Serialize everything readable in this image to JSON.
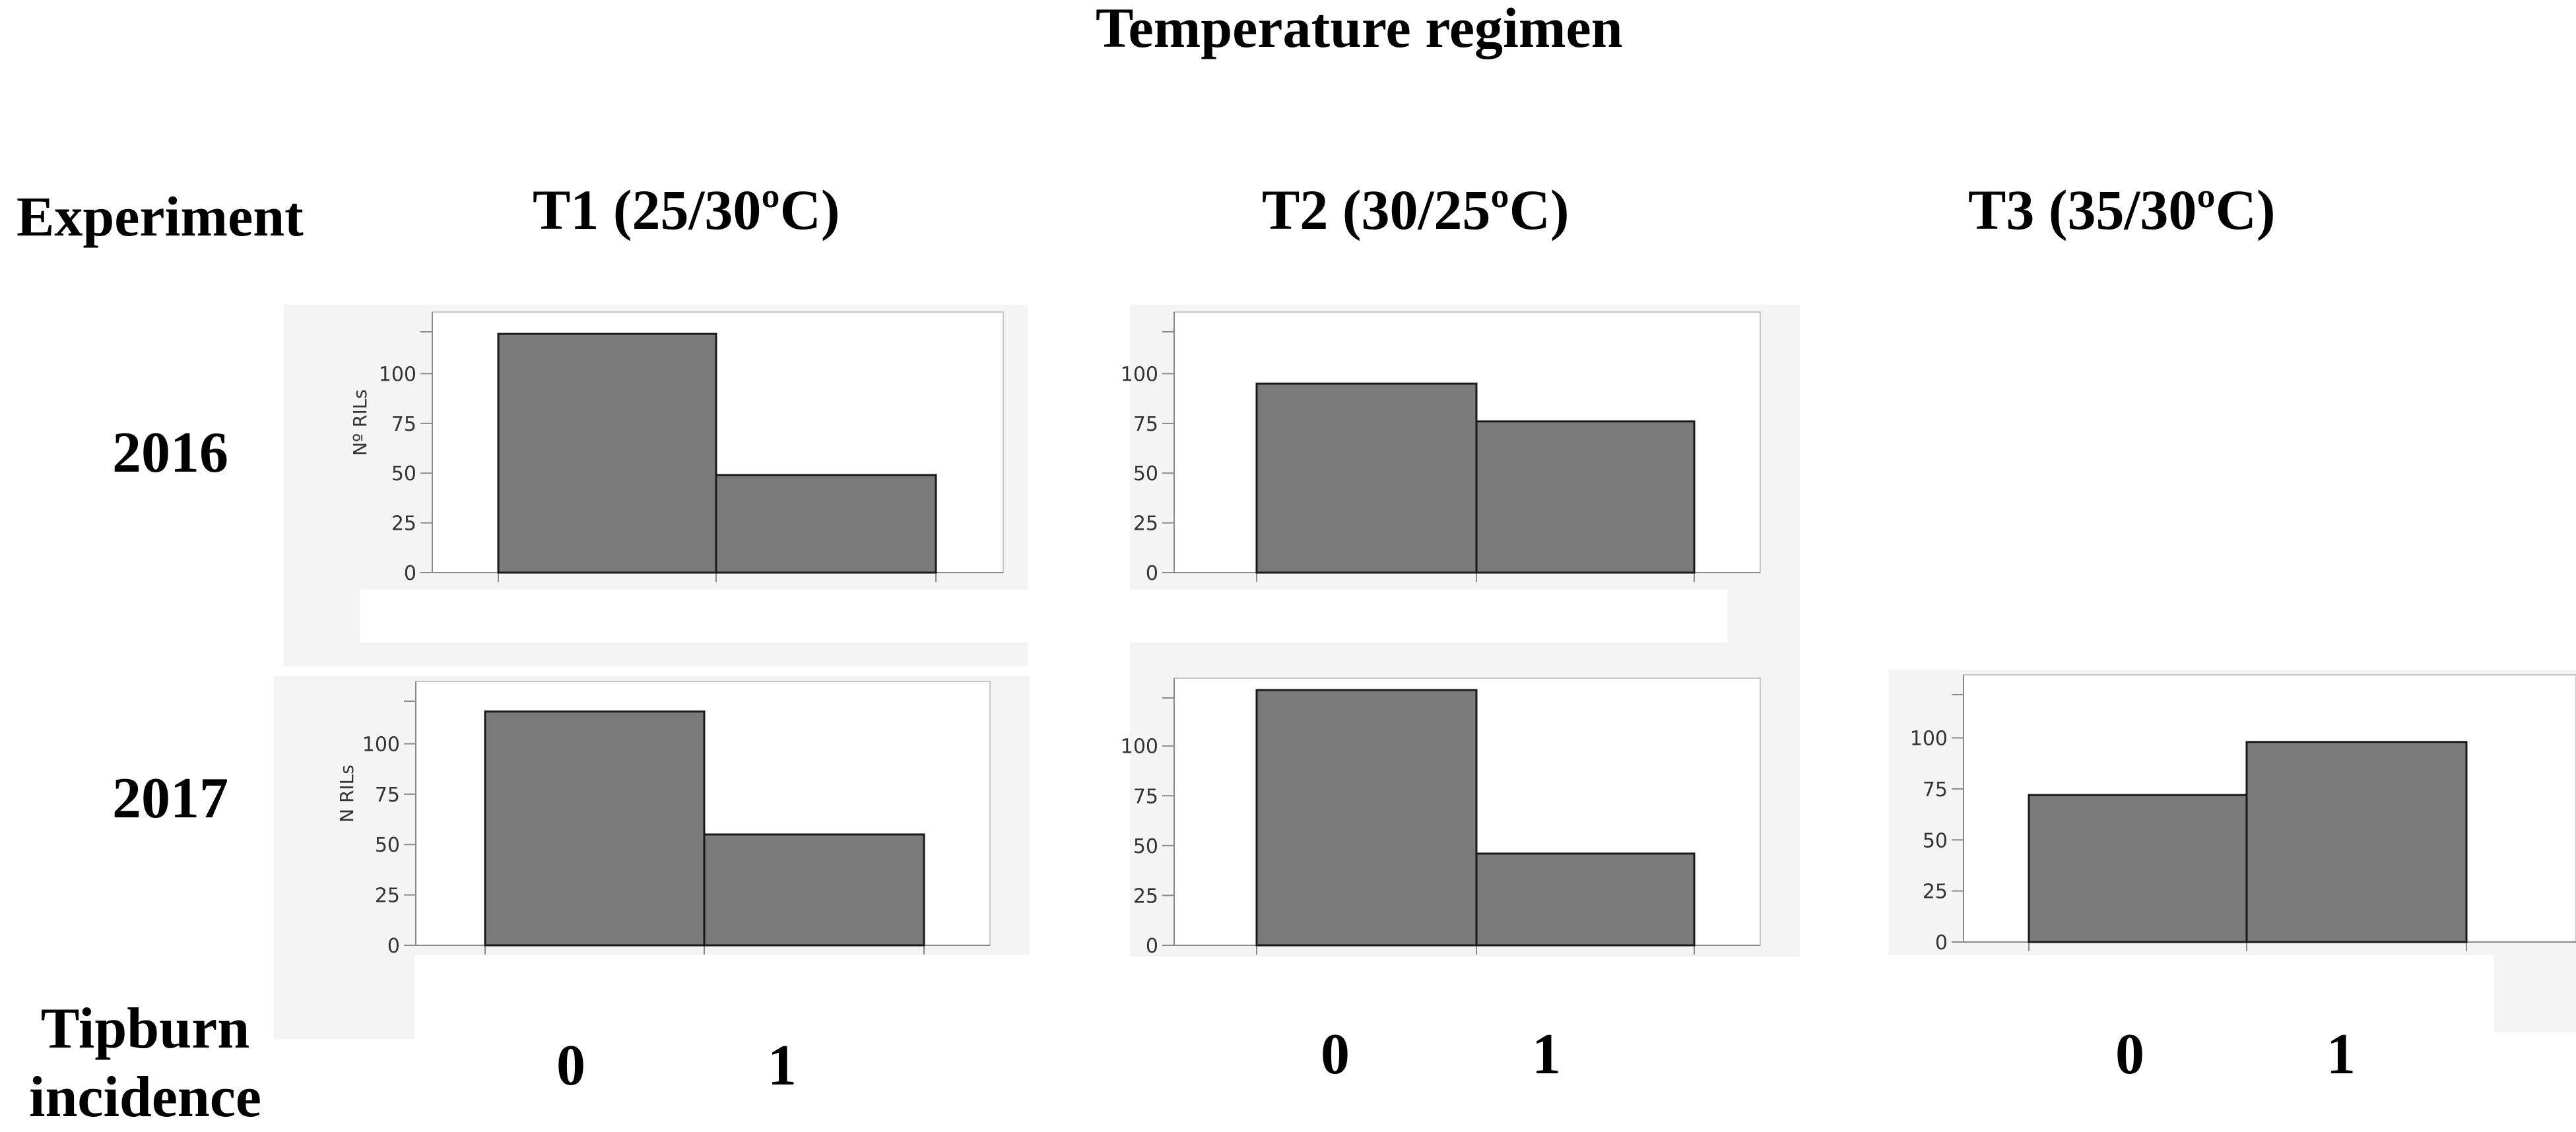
{
  "figure": {
    "header": "Temperature regimen",
    "row_header": "Experiment",
    "columns": [
      "T1 (25/30ºC)",
      "T2 (30/25ºC)",
      "T3 (35/30ºC)"
    ],
    "rows": [
      "2016",
      "2017"
    ],
    "x_axis_label": "Tipburn incidence",
    "x_categories": [
      "0",
      "1"
    ]
  },
  "chart_data": [
    {
      "type": "bar",
      "row": "2016",
      "column": "T1 (25/30ºC)",
      "categories": [
        "0",
        "1"
      ],
      "values": [
        120,
        49
      ],
      "ylabel": "Nº RILs",
      "ylim": [
        0,
        127
      ],
      "yticks": [
        0,
        25,
        50,
        75,
        100
      ],
      "grid": false,
      "color": "#7a7a7a"
    },
    {
      "type": "bar",
      "row": "2016",
      "column": "T2 (30/25ºC)",
      "categories": [
        "0",
        "1"
      ],
      "values": [
        95,
        76
      ],
      "ylabel": "",
      "ylim": [
        0,
        127
      ],
      "yticks": [
        0,
        25,
        50,
        75,
        100
      ],
      "grid": false,
      "color": "#7a7a7a"
    },
    {
      "type": "bar",
      "row": "2017",
      "column": "T1 (25/30ºC)",
      "categories": [
        "0",
        "1"
      ],
      "values": [
        116,
        55
      ],
      "ylabel": "N RILs",
      "ylim": [
        0,
        127
      ],
      "yticks": [
        0,
        25,
        50,
        75,
        100
      ],
      "grid": false,
      "color": "#7a7a7a"
    },
    {
      "type": "bar",
      "row": "2017",
      "column": "T2 (30/25ºC)",
      "categories": [
        "0",
        "1"
      ],
      "values": [
        128,
        46
      ],
      "ylabel": "",
      "ylim": [
        0,
        130
      ],
      "yticks": [
        0,
        25,
        50,
        75,
        100
      ],
      "grid": false,
      "color": "#7a7a7a"
    },
    {
      "type": "bar",
      "row": "2017",
      "column": "T3 (35/30ºC)",
      "categories": [
        "0",
        "1"
      ],
      "values": [
        72,
        98
      ],
      "ylabel": "",
      "ylim": [
        0,
        127
      ],
      "yticks": [
        0,
        25,
        50,
        75,
        100
      ],
      "grid": false,
      "color": "#7a7a7a"
    }
  ]
}
